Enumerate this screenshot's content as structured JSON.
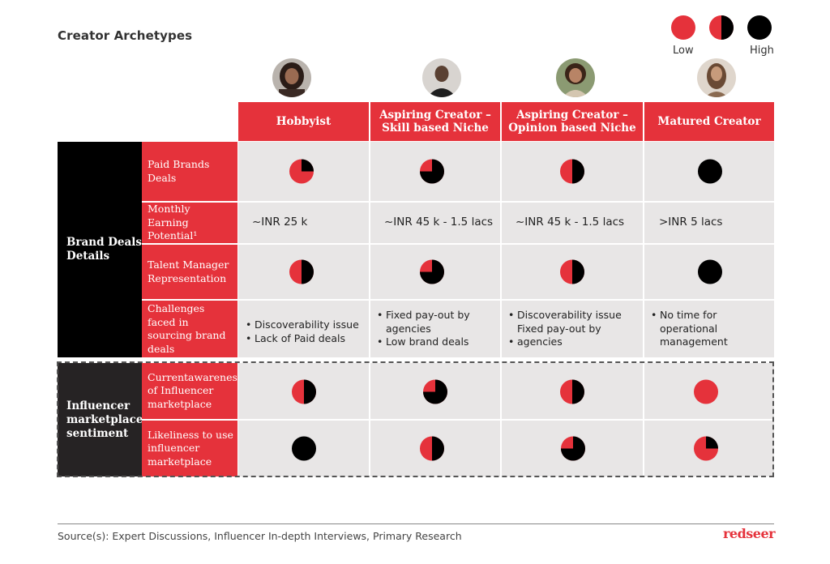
{
  "title": "Creator Archetypes",
  "legend": {
    "low_label": "Low",
    "high_label": "High",
    "icons": [
      "harvey-ball-low-icon",
      "harvey-ball-half-icon",
      "harvey-ball-high-icon"
    ]
  },
  "colors": {
    "accent_red": "#e5323b",
    "dark": "#000000",
    "cell_bg": "#e8e6e6"
  },
  "columns": [
    {
      "label": "Hobbyist",
      "avatar": "hobbyist-avatar"
    },
    {
      "label": "Aspiring Creator – Skill based Niche",
      "avatar": "aspiring-skill-avatar"
    },
    {
      "label": "Aspiring Creator – Opinion based Niche",
      "avatar": "aspiring-opinion-avatar"
    },
    {
      "label": "Matured Creator",
      "avatar": "matured-avatar"
    }
  ],
  "groups": [
    {
      "label": "Brand Deals Details"
    },
    {
      "label": "Influencer marketplace sentiment"
    }
  ],
  "rows": [
    {
      "label": "Paid Brands Deals",
      "levels": [
        0.25,
        0.75,
        0.5,
        1.0
      ]
    },
    {
      "label": "Monthly Earning Potential¹",
      "values": [
        "~INR 25 k",
        "~INR 45 k - 1.5 lacs",
        "~INR 45 k - 1.5 lacs",
        ">INR 5 lacs"
      ]
    },
    {
      "label": "Talent Manager Representation",
      "levels": [
        0.5,
        0.75,
        0.5,
        1.0
      ]
    },
    {
      "label": "Challenges faced in sourcing brand deals",
      "bullets": [
        [
          "Discoverability issue",
          "Lack of Paid deals"
        ],
        [
          "Fixed pay-out by agencies",
          "Low brand deals"
        ],
        [
          "Discoverability issue",
          "Fixed pay-out by",
          "agencies"
        ],
        [
          "No time for operational management"
        ]
      ]
    },
    {
      "label": "Currentawareness of Influencer marketplace",
      "levels": [
        0.5,
        0.75,
        0.5,
        0.0
      ]
    },
    {
      "label": "Likeliness to use influencer marketplace",
      "levels": [
        1.0,
        0.5,
        0.75,
        0.25
      ]
    }
  ],
  "footer": {
    "source": "Source(s): Expert Discussions, Influencer In-depth Interviews, Primary Research",
    "logo": "redseer"
  }
}
